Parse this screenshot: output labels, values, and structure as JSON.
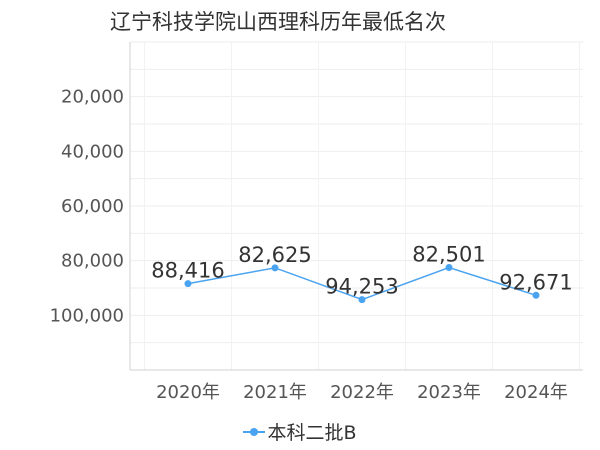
{
  "chart_data": {
    "type": "line",
    "title": "辽宁科技学院山西理科历年最低名次",
    "categories": [
      "2020年",
      "2021年",
      "2022年",
      "2023年",
      "2024年"
    ],
    "y_axis": {
      "inverted": true,
      "range": [
        0,
        120000
      ],
      "ticks": [
        20000,
        40000,
        60000,
        80000,
        100000
      ],
      "tick_labels": [
        "20,000",
        "40,000",
        "60,000",
        "80,000",
        "100,000"
      ]
    },
    "series": [
      {
        "name": "本科二批B",
        "values": [
          88416,
          82625,
          94253,
          82501,
          92671
        ],
        "labels": [
          "88,416",
          "82,625",
          "94,253",
          "82,501",
          "92,671"
        ],
        "color": "#4aa3f0"
      }
    ],
    "grid": true,
    "legend": "bottom"
  }
}
